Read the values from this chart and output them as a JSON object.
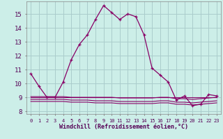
{
  "xlabel": "Windchill (Refroidissement éolien,°C)",
  "background_color": "#cceee8",
  "grid_color": "#aacccc",
  "line_color": "#880066",
  "x_hours": [
    0,
    1,
    2,
    3,
    4,
    5,
    6,
    7,
    8,
    9,
    10,
    11,
    12,
    13,
    14,
    15,
    16,
    17,
    18,
    19,
    20,
    21,
    22,
    23
  ],
  "temp_line": [
    10.7,
    9.8,
    9.0,
    9.0,
    10.1,
    11.7,
    12.8,
    13.5,
    14.6,
    15.6,
    15.1,
    14.6,
    15.0,
    14.8,
    13.5,
    11.1,
    10.6,
    10.1,
    8.8,
    9.1,
    8.4,
    8.5,
    9.2,
    9.1
  ],
  "flat_line1": [
    9.0,
    9.0,
    9.0,
    9.0,
    9.0,
    9.0,
    9.0,
    9.0,
    9.0,
    9.0,
    9.0,
    9.0,
    9.0,
    9.0,
    9.0,
    9.0,
    9.0,
    9.0,
    9.0,
    9.0,
    9.0,
    9.0,
    9.0,
    9.0
  ],
  "flat_line2": [
    8.7,
    8.7,
    8.7,
    8.7,
    8.7,
    8.65,
    8.65,
    8.65,
    8.6,
    8.6,
    8.6,
    8.55,
    8.55,
    8.55,
    8.55,
    8.55,
    8.6,
    8.6,
    8.5,
    8.5,
    8.45,
    8.5,
    8.55,
    8.6
  ],
  "flat_line3": [
    8.85,
    8.85,
    8.85,
    8.85,
    8.85,
    8.8,
    8.8,
    8.8,
    8.75,
    8.75,
    8.75,
    8.7,
    8.7,
    8.7,
    8.7,
    8.7,
    8.75,
    8.75,
    8.65,
    8.65,
    8.6,
    8.65,
    8.7,
    8.75
  ],
  "flat_line4": [
    9.05,
    9.05,
    9.05,
    9.05,
    9.05,
    9.0,
    9.0,
    9.0,
    9.0,
    9.0,
    9.0,
    8.95,
    8.95,
    8.95,
    8.95,
    8.95,
    9.0,
    9.0,
    8.9,
    8.9,
    8.85,
    8.9,
    8.95,
    9.0
  ],
  "ylim": [
    7.8,
    15.9
  ],
  "yticks": [
    8,
    9,
    10,
    11,
    12,
    13,
    14,
    15
  ],
  "xtick_labels": [
    "0",
    "1",
    "2",
    "3",
    "4",
    "5",
    "6",
    "7",
    "8",
    "9",
    "10",
    "11",
    "12",
    "13",
    "14",
    "15",
    "16",
    "17",
    "18",
    "19",
    "20",
    "21",
    "22",
    "23"
  ]
}
